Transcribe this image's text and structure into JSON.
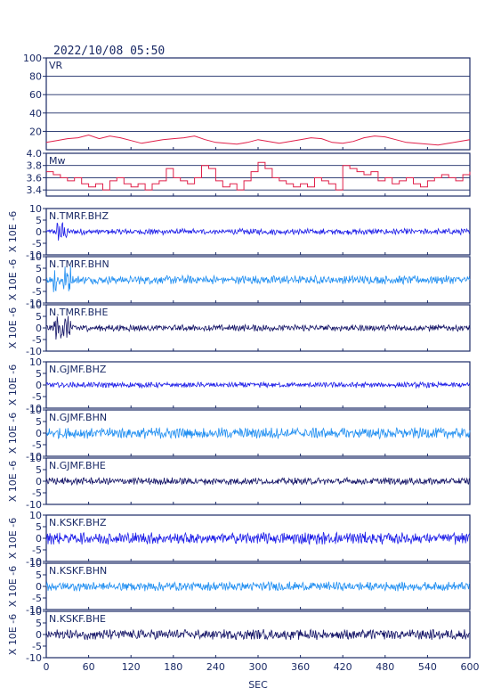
{
  "header": {
    "datetime": "2022/10/08 05:50"
  },
  "chart_data": [
    {
      "type": "line",
      "panel": "vr",
      "label": "VR",
      "ylim": [
        0,
        100
      ],
      "yticks": [
        20,
        40,
        60,
        80,
        100
      ],
      "grid": true,
      "color": "#e0204a",
      "x": [
        0,
        15,
        30,
        45,
        60,
        75,
        90,
        105,
        120,
        135,
        150,
        165,
        180,
        195,
        210,
        225,
        240,
        255,
        270,
        285,
        300,
        315,
        330,
        345,
        360,
        375,
        390,
        405,
        420,
        435,
        450,
        465,
        480,
        495,
        510,
        525,
        540,
        555,
        570,
        585,
        600
      ],
      "values": [
        8,
        10,
        12,
        13,
        16,
        12,
        15,
        13,
        10,
        7,
        9,
        11,
        12,
        13,
        15,
        11,
        8,
        7,
        6,
        8,
        11,
        9,
        7,
        9,
        11,
        13,
        12,
        8,
        7,
        9,
        13,
        15,
        14,
        11,
        8,
        7,
        6,
        5,
        7,
        9,
        11
      ]
    },
    {
      "type": "line",
      "panel": "mw",
      "label": "Mw",
      "ylim": [
        3.3,
        4.0
      ],
      "yticks": [
        3.4,
        3.6,
        3.8,
        4.0
      ],
      "grid": true,
      "color": "#e0204a",
      "x": [
        0,
        10,
        20,
        30,
        40,
        50,
        60,
        70,
        80,
        90,
        100,
        110,
        120,
        130,
        140,
        150,
        160,
        170,
        180,
        190,
        200,
        210,
        220,
        230,
        240,
        250,
        260,
        270,
        280,
        290,
        300,
        310,
        320,
        330,
        340,
        350,
        360,
        370,
        380,
        390,
        400,
        410,
        420,
        430,
        440,
        450,
        460,
        470,
        480,
        490,
        500,
        510,
        520,
        530,
        540,
        550,
        560,
        570,
        580,
        590,
        600
      ],
      "values": [
        3.7,
        3.65,
        3.6,
        3.55,
        3.6,
        3.5,
        3.45,
        3.5,
        3.4,
        3.55,
        3.6,
        3.5,
        3.45,
        3.5,
        3.4,
        3.5,
        3.55,
        3.75,
        3.6,
        3.55,
        3.5,
        3.6,
        3.8,
        3.75,
        3.55,
        3.45,
        3.5,
        3.4,
        3.55,
        3.7,
        3.85,
        3.75,
        3.6,
        3.55,
        3.5,
        3.45,
        3.5,
        3.45,
        3.6,
        3.55,
        3.5,
        3.4,
        3.8,
        3.75,
        3.7,
        3.65,
        3.7,
        3.55,
        3.6,
        3.5,
        3.55,
        3.6,
        3.5,
        3.45,
        3.55,
        3.6,
        3.65,
        3.6,
        3.55,
        3.65,
        3.7
      ]
    },
    {
      "type": "line",
      "panel": "trace",
      "label": "N.TMRF.BHZ",
      "ylabel": "X 10E -6",
      "ylim": [
        -10,
        10
      ],
      "yticks": [
        -10,
        -5,
        0,
        5,
        10
      ],
      "color": "#1c1ce8",
      "burst": [
        15,
        30
      ],
      "amp": 1.0,
      "burstAmp": 3.5
    },
    {
      "type": "line",
      "panel": "trace",
      "label": "N.TMRF.BHN",
      "ylabel": "X 10E -6",
      "ylim": [
        -10,
        10
      ],
      "yticks": [
        -10,
        -5,
        0,
        5,
        10
      ],
      "color": "#1f8ef1",
      "burst": [
        10,
        35
      ],
      "amp": 1.4,
      "burstAmp": 5.0
    },
    {
      "type": "line",
      "panel": "trace",
      "label": "N.TMRF.BHE",
      "ylabel": "X 10E -6",
      "ylim": [
        -10,
        10
      ],
      "yticks": [
        -10,
        -5,
        0,
        5,
        10
      ],
      "color": "#141466",
      "burst": [
        10,
        35
      ],
      "amp": 1.1,
      "burstAmp": 4.0
    },
    {
      "type": "line",
      "panel": "trace",
      "label": "N.GJMF.BHZ",
      "ylabel": "X 10E -6",
      "ylim": [
        -10,
        10
      ],
      "yticks": [
        -10,
        -5,
        0,
        5,
        10
      ],
      "color": "#1c1ce8",
      "amp": 0.9
    },
    {
      "type": "line",
      "panel": "trace",
      "label": "N.GJMF.BHN",
      "ylabel": "X 10E -6",
      "ylim": [
        -10,
        10
      ],
      "yticks": [
        -10,
        -5,
        0,
        5,
        10
      ],
      "color": "#1f8ef1",
      "amp": 1.8
    },
    {
      "type": "line",
      "panel": "trace",
      "label": "N.GJMF.BHE",
      "ylabel": "X 10E -6",
      "ylim": [
        -10,
        10
      ],
      "yticks": [
        -10,
        -5,
        0,
        5,
        10
      ],
      "color": "#141466",
      "amp": 1.2
    },
    {
      "type": "line",
      "panel": "trace",
      "label": "N.KSKF.BHZ",
      "ylabel": "X 10E -6",
      "ylim": [
        -10,
        10
      ],
      "yticks": [
        -10,
        -5,
        0,
        5,
        10
      ],
      "color": "#1c1ce8",
      "amp": 2.0
    },
    {
      "type": "line",
      "panel": "trace",
      "label": "N.KSKF.BHN",
      "ylabel": "X 10E -6",
      "ylim": [
        -10,
        10
      ],
      "yticks": [
        -10,
        -5,
        0,
        5,
        10
      ],
      "color": "#1f8ef1",
      "amp": 1.5
    },
    {
      "type": "line",
      "panel": "trace",
      "label": "N.KSKF.BHE",
      "ylabel": "X 10E -6",
      "ylim": [
        -10,
        10
      ],
      "yticks": [
        -10,
        -5,
        0,
        5,
        10
      ],
      "color": "#141466",
      "amp": 1.7
    }
  ],
  "xaxis": {
    "label": "SEC",
    "ticks": [
      0,
      60,
      120,
      180,
      240,
      300,
      360,
      420,
      480,
      540,
      600
    ],
    "xlim": [
      0,
      600
    ]
  }
}
